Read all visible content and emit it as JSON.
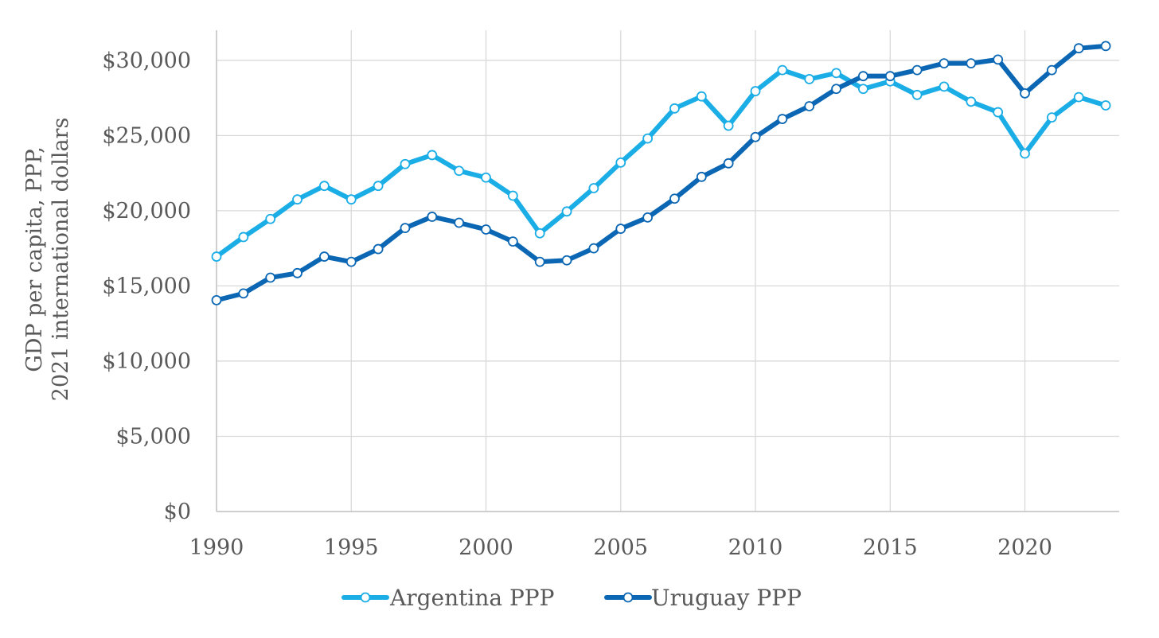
{
  "chart_data": {
    "type": "line",
    "title": "",
    "xlabel": "",
    "ylabel": [
      "GDP per capita, PPP,",
      "2021 international dollars"
    ],
    "x": [
      1990,
      1991,
      1992,
      1993,
      1994,
      1995,
      1996,
      1997,
      1998,
      1999,
      2000,
      2001,
      2002,
      2003,
      2004,
      2005,
      2006,
      2007,
      2008,
      2009,
      2010,
      2011,
      2012,
      2013,
      2014,
      2015,
      2016,
      2017,
      2018,
      2019,
      2020,
      2021,
      2022,
      2023
    ],
    "x_ticks": [
      1990,
      1995,
      2000,
      2005,
      2010,
      2015,
      2020
    ],
    "x_tick_labels": [
      "1990",
      "1995",
      "2000",
      "2005",
      "2010",
      "2015",
      "2020"
    ],
    "xlim": [
      1990,
      2023.5
    ],
    "ylim": [
      0,
      32000
    ],
    "y_ticks": [
      0,
      5000,
      10000,
      15000,
      20000,
      25000,
      30000
    ],
    "y_tick_labels": [
      "$0",
      "$5,000",
      "$10,000",
      "$15,000",
      "$20,000",
      "$25,000",
      "$30,000"
    ],
    "grid": true,
    "legend_position": "bottom",
    "series": [
      {
        "name": "Argentina PPP",
        "color": "#1AADE6",
        "values": [
          16950,
          18250,
          19450,
          20750,
          21650,
          20750,
          21650,
          23100,
          23700,
          22650,
          22200,
          21000,
          18500,
          19950,
          21500,
          23200,
          24800,
          26800,
          27600,
          25650,
          27950,
          29350,
          28750,
          29150,
          28100,
          28600,
          27700,
          28250,
          27250,
          26550,
          23800,
          26200,
          27550,
          27000
        ]
      },
      {
        "name": "Uruguay PPP",
        "color": "#0B67B4",
        "values": [
          14050,
          14500,
          15550,
          15850,
          16950,
          16600,
          17450,
          18850,
          19600,
          19200,
          18750,
          17950,
          16600,
          16700,
          17500,
          18800,
          19550,
          20800,
          22250,
          23150,
          24900,
          26100,
          26950,
          28100,
          28950,
          28950,
          29350,
          29800,
          29800,
          30050,
          27800,
          29350,
          30800,
          30950
        ]
      }
    ]
  }
}
